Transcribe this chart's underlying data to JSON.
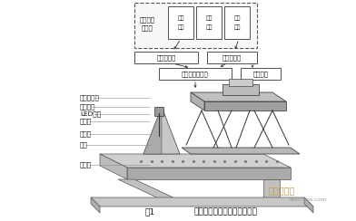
{
  "bg_color": "#ffffff",
  "fig_caption": "图1  高速并联机器人自动分装系统",
  "top_box_label_1": "工业控制",
  "top_box_label_2": "计算机",
  "top_sub_boxes": [
    "图像\n处理",
    "人机\n接口",
    "运动\n控制"
  ],
  "row2_boxes": [
    "图像采集卡",
    "运动控制器"
  ],
  "row3_boxes": [
    "伺服电机驱动器",
    "气动系统"
  ],
  "left_labels": [
    "并联机器人",
    "工业相机",
    "LED光源",
    "夹持器",
    "包装箱",
    "食品",
    "输送带"
  ],
  "watermark": "电子发烧友",
  "watermark2": "elecfans.com",
  "caption_fig": "图1",
  "caption_text": "高速并联机器人自动分装系统"
}
